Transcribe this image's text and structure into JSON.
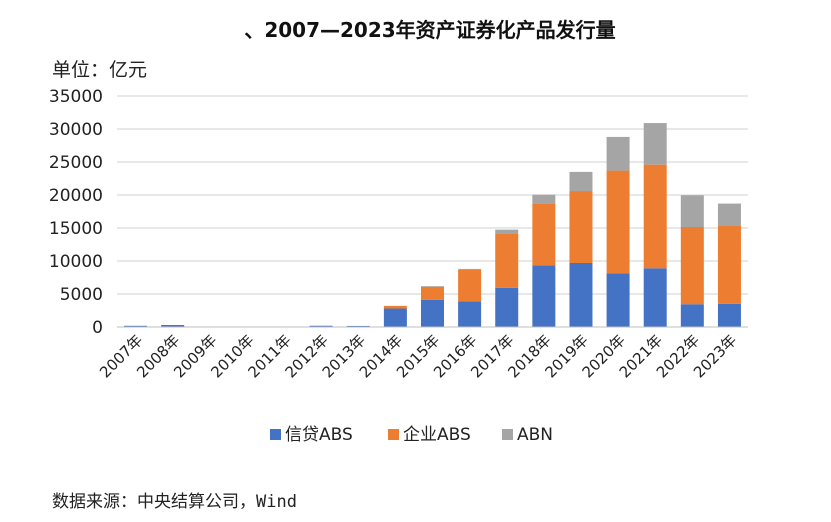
{
  "chart_data": {
    "type": "bar",
    "stacked": true,
    "title": "、2007—2023年资产证券化产品发行量",
    "unit_label": "单位：亿元",
    "categories": [
      "2007年",
      "2008年",
      "2009年",
      "2010年",
      "2011年",
      "2012年",
      "2013年",
      "2014年",
      "2015年",
      "2016年",
      "2017年",
      "2018年",
      "2019年",
      "2020年",
      "2021年",
      "2022年",
      "2023年"
    ],
    "series": [
      {
        "name": "信贷ABS",
        "color": "#4472C4",
        "values": [
          180,
          300,
          0,
          0,
          13,
          190,
          160,
          2800,
          4100,
          3900,
          5950,
          9350,
          9700,
          8100,
          8900,
          3450,
          3500
        ]
      },
      {
        "name": "企业ABS",
        "color": "#ED7D31",
        "values": [
          0,
          0,
          0,
          0,
          0,
          0,
          0,
          400,
          2000,
          4800,
          8200,
          9400,
          10900,
          15600,
          15700,
          11700,
          11900
        ]
      },
      {
        "name": "ABN",
        "color": "#A5A5A5",
        "values": [
          0,
          0,
          0,
          0,
          0,
          0,
          0,
          0,
          100,
          100,
          600,
          1300,
          2900,
          5100,
          6300,
          4800,
          3300
        ]
      }
    ],
    "ylim": [
      0,
      35000
    ],
    "yticks": [
      "0",
      "5000",
      "10000",
      "15000",
      "20000",
      "25000",
      "30000",
      "35000"
    ],
    "grid": true,
    "legend_position": "bottom",
    "source": "数据来源：中央结算公司，Wind"
  }
}
